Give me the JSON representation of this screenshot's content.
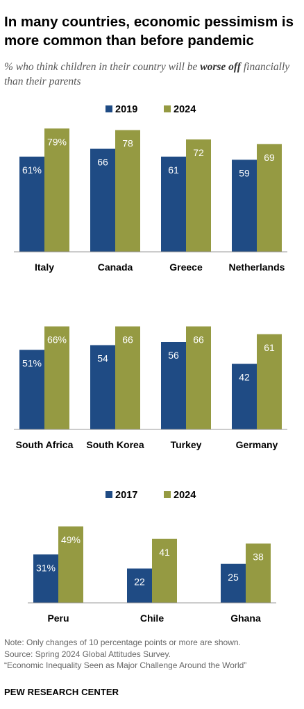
{
  "title": "In many countries, economic pessimism is more common than before pandemic",
  "subtitle": {
    "prefix": "% who think children in their country will be ",
    "emphasis": "worse off",
    "suffix": " financially than their parents"
  },
  "colors": {
    "earlier": "#1f4b84",
    "later": "#959a42"
  },
  "chart_data": [
    {
      "type": "bar",
      "categories": [
        "Italy",
        "Canada",
        "Greece",
        "Netherlands"
      ],
      "series": [
        {
          "name": "2019",
          "values": [
            61,
            66,
            61,
            59
          ],
          "labels": [
            "61%",
            "66",
            "61",
            "59"
          ]
        },
        {
          "name": "2024",
          "values": [
            79,
            78,
            72,
            69
          ],
          "labels": [
            "79%",
            "78",
            "72",
            "69"
          ]
        }
      ],
      "ylim": [
        0,
        80
      ],
      "legend": "top",
      "grid": false
    },
    {
      "type": "bar",
      "categories": [
        "South Africa",
        "South Korea",
        "Turkey",
        "Germany"
      ],
      "series": [
        {
          "name": "2019",
          "values": [
            51,
            54,
            56,
            42
          ],
          "labels": [
            "51%",
            "54",
            "56",
            "42"
          ]
        },
        {
          "name": "2024",
          "values": [
            66,
            66,
            66,
            61
          ],
          "labels": [
            "66%",
            "66",
            "66",
            "61"
          ]
        }
      ],
      "ylim": [
        0,
        80
      ],
      "legend": "none",
      "grid": false
    },
    {
      "type": "bar",
      "categories": [
        "Peru",
        "Chile",
        "Ghana"
      ],
      "series": [
        {
          "name": "2017",
          "values": [
            31,
            22,
            25
          ],
          "labels": [
            "31%",
            "22",
            "25"
          ]
        },
        {
          "name": "2024",
          "values": [
            49,
            41,
            38
          ],
          "labels": [
            "49%",
            "41",
            "38"
          ]
        }
      ],
      "ylim": [
        0,
        80
      ],
      "legend": "top",
      "grid": false
    }
  ],
  "notes": [
    "Note: Only changes of 10 percentage points or more are shown.",
    "Source: Spring 2024 Global Attitudes Survey.",
    "“Economic Inequality Seen as Major Challenge Around the World”"
  ],
  "brand": "PEW RESEARCH CENTER"
}
